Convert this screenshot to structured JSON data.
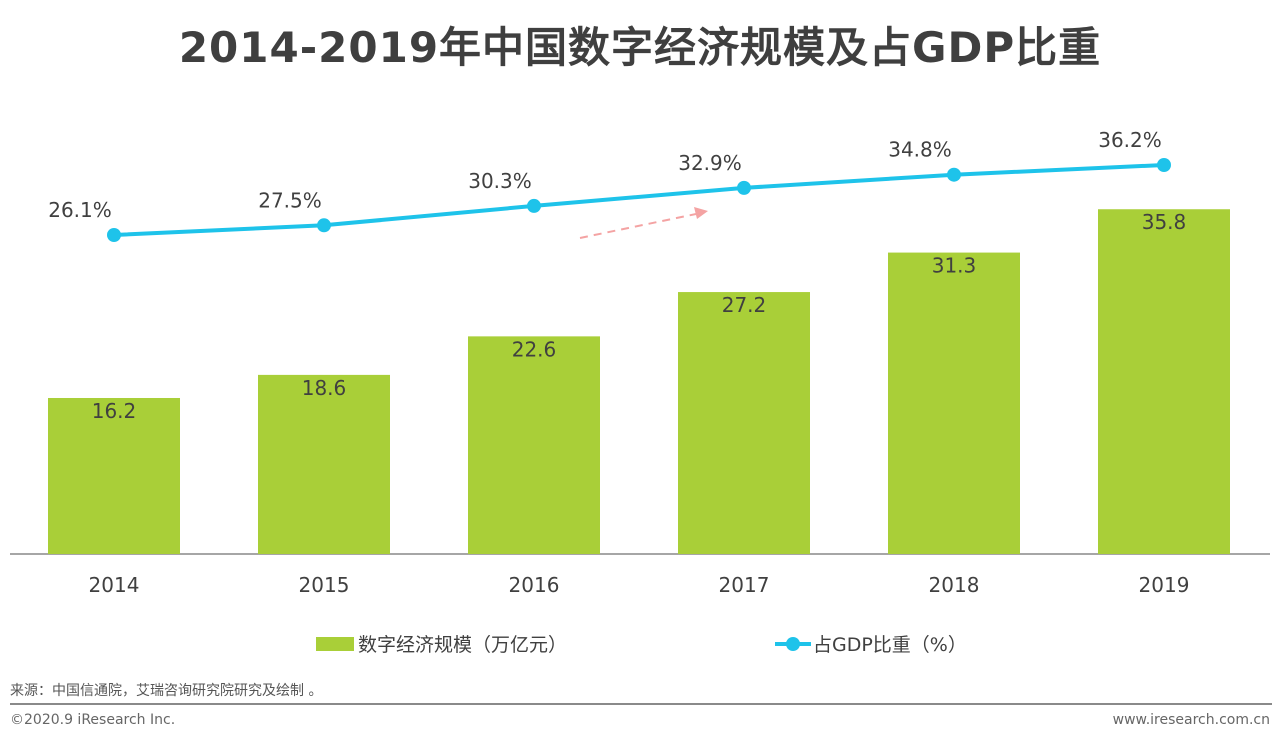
{
  "chart_data": {
    "type": "bar+line",
    "title": "2014-2019年中国数字经济规模及占GDP比重",
    "categories": [
      "2014",
      "2015",
      "2016",
      "2017",
      "2018",
      "2019"
    ],
    "series": [
      {
        "name": "数字经济规模（万亿元）",
        "type": "bar",
        "color": "#a9cf38",
        "values": [
          16.2,
          18.6,
          22.6,
          27.2,
          31.3,
          35.8
        ]
      },
      {
        "name": "占GDP比重（%）",
        "type": "line",
        "color": "#1ec3ea",
        "values": [
          26.1,
          27.5,
          30.3,
          32.9,
          34.8,
          36.2
        ],
        "labels": [
          "26.1%",
          "27.5%",
          "30.3%",
          "32.9%",
          "34.8%",
          "36.2%"
        ]
      }
    ],
    "annotation_arrow_color": "#f4a3a3",
    "grid": false,
    "legend_position": "bottom"
  },
  "footer": {
    "source": "来源：中国信通院，艾瑞咨询研究院研究及绘制 。",
    "copyright": "©2020.9 iResearch Inc.",
    "website": "www.iresearch.com.cn"
  }
}
